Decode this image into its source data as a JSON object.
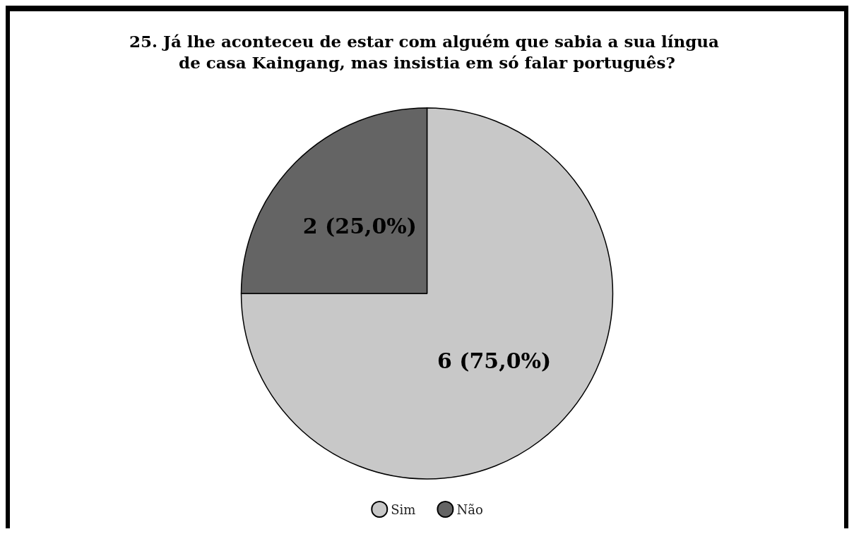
{
  "chart_data": {
    "type": "pie",
    "title": "25. Já lhe aconteceu de estar com alguém que sabia a sua língua de casa Kaingang, mas insistia em só falar português?",
    "categories": [
      "Sim",
      "Não"
    ],
    "values": [
      6,
      2
    ],
    "colors": [
      "#c8c8c8",
      "#646464"
    ],
    "value_labels": [
      "6 (75,0%)",
      "2 (25,0%)"
    ],
    "legend": "bottom"
  }
}
